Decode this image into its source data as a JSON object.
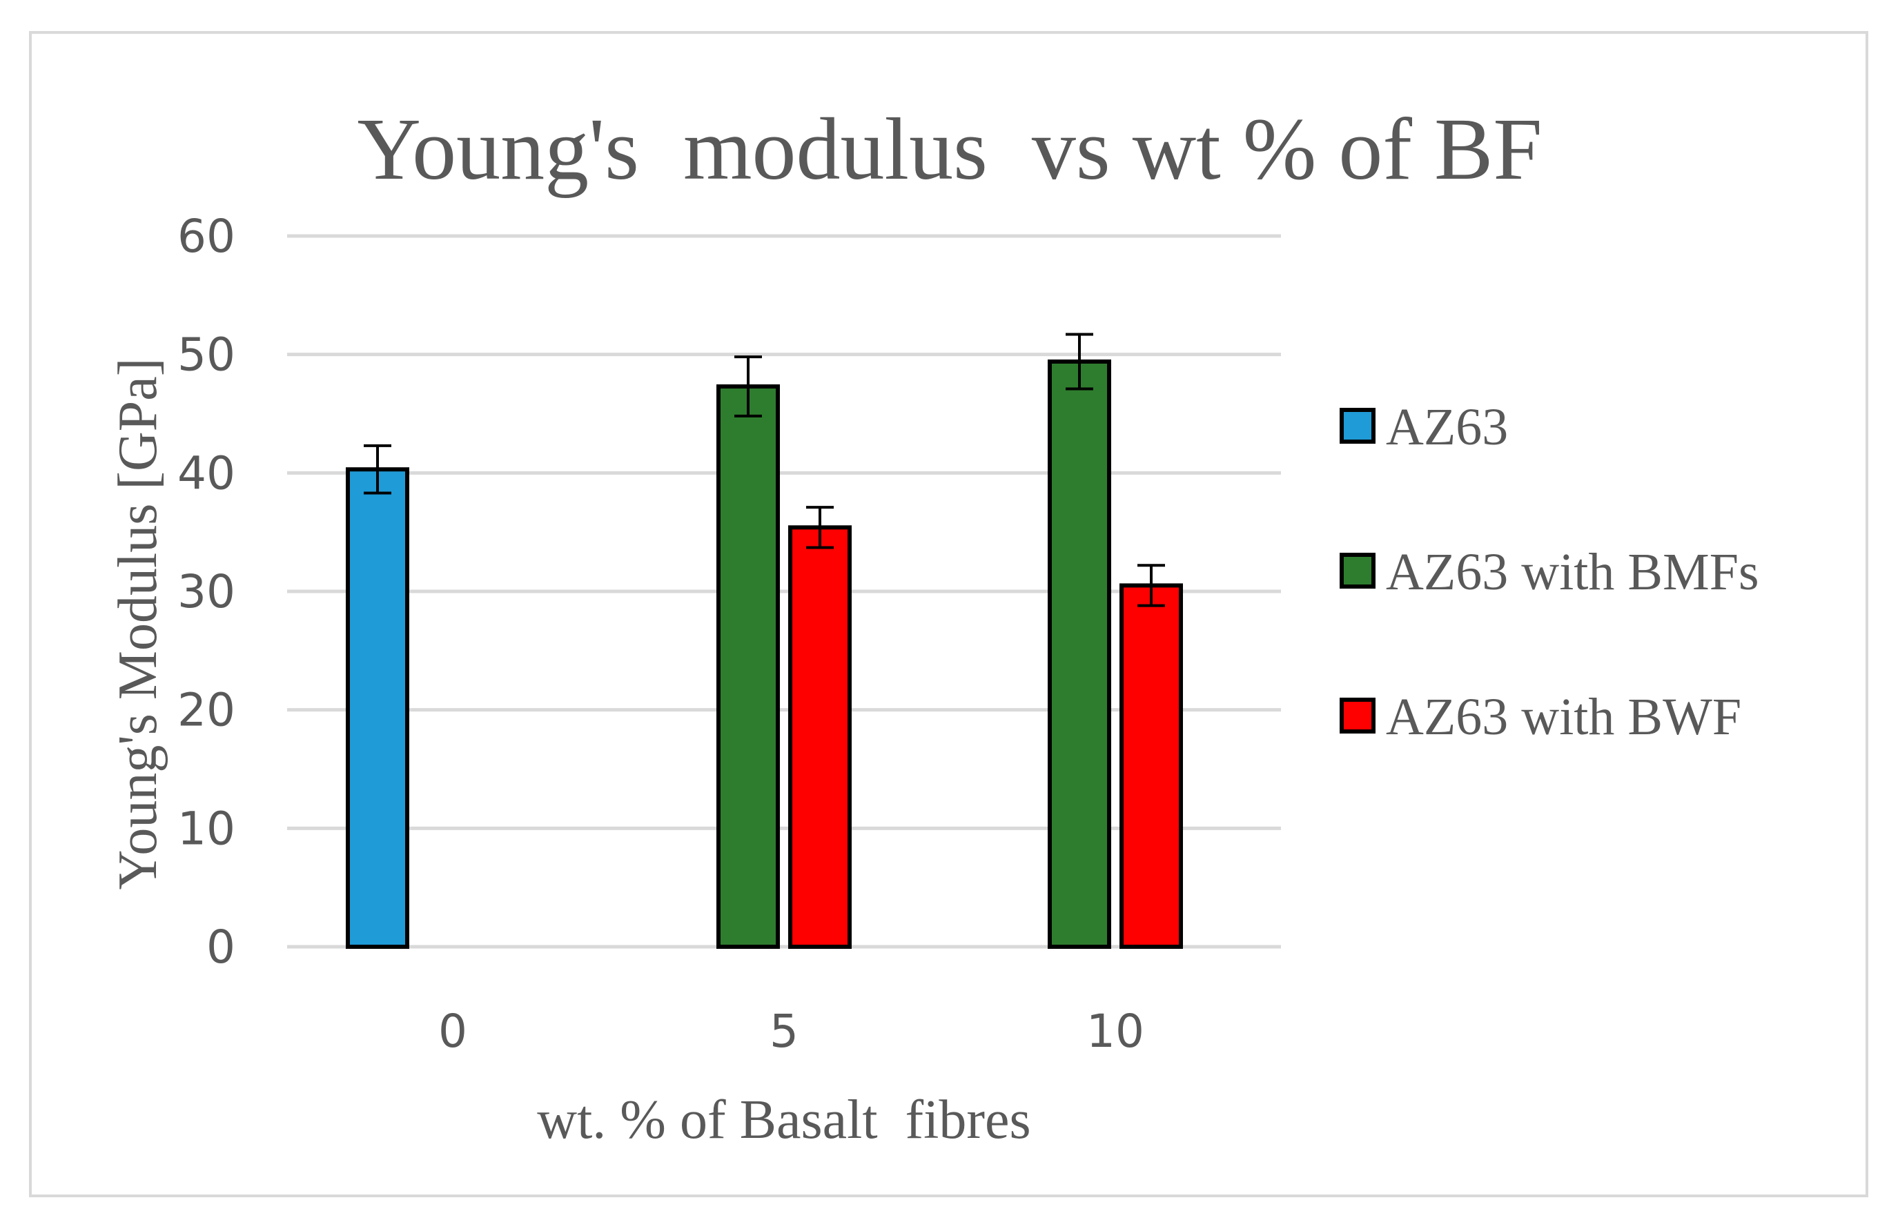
{
  "chart_data": {
    "type": "bar",
    "title": "Young's  modulus  vs wt % of BF",
    "xlabel": "wt. % of Basalt  fibres",
    "ylabel": "Young's Modulus [GPa]",
    "categories": [
      "0",
      "5",
      "10"
    ],
    "ylim": [
      0,
      60
    ],
    "yticks": [
      0,
      10,
      20,
      30,
      40,
      50,
      60
    ],
    "grid": true,
    "legend": "right",
    "series": [
      {
        "name": "AZ63",
        "color": "#1f9bd7",
        "values": [
          40.3,
          null,
          null
        ],
        "errors": [
          2.0,
          null,
          null
        ]
      },
      {
        "name": "AZ63 with BMFs",
        "color": "#2e7d2e",
        "values": [
          null,
          47.3,
          49.4
        ],
        "errors": [
          null,
          2.5,
          2.3
        ]
      },
      {
        "name": "AZ63 with BWF",
        "color": "#ff0000",
        "values": [
          null,
          35.4,
          30.5
        ],
        "errors": [
          null,
          1.7,
          1.7
        ]
      }
    ]
  }
}
